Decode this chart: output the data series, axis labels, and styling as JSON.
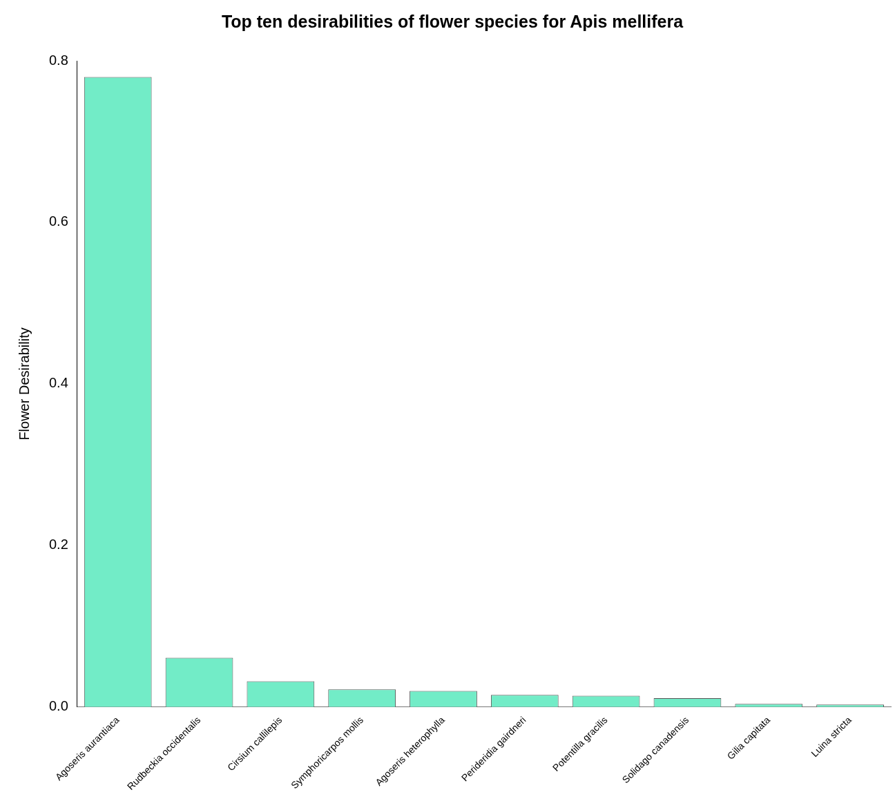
{
  "chart_data": {
    "type": "bar",
    "title": "Top ten desirabilities of flower species for Apis mellifera",
    "ylabel": "Flower Desirability",
    "categories": [
      "Agoseris aurantiaca",
      "Rudbeckia occidentalis",
      "Cirsium callilepis",
      "Symphoricarpos mollis",
      "Agoseris heterophylla",
      "Perideridia gairdneri",
      "Potentilla gracilis",
      "Solidago canadensis",
      "Gilia capitata",
      "Luina stricta"
    ],
    "values": [
      0.78,
      0.061,
      0.032,
      0.022,
      0.02,
      0.015,
      0.014,
      0.011,
      0.004,
      0.003
    ],
    "color": "#72ecc7",
    "ylim": [
      0,
      0.8
    ],
    "yticks": [
      {
        "value": 0,
        "label": "0.0"
      },
      0.2,
      0.4,
      0.6,
      0.8
    ],
    "grid": false,
    "legend": false
  }
}
